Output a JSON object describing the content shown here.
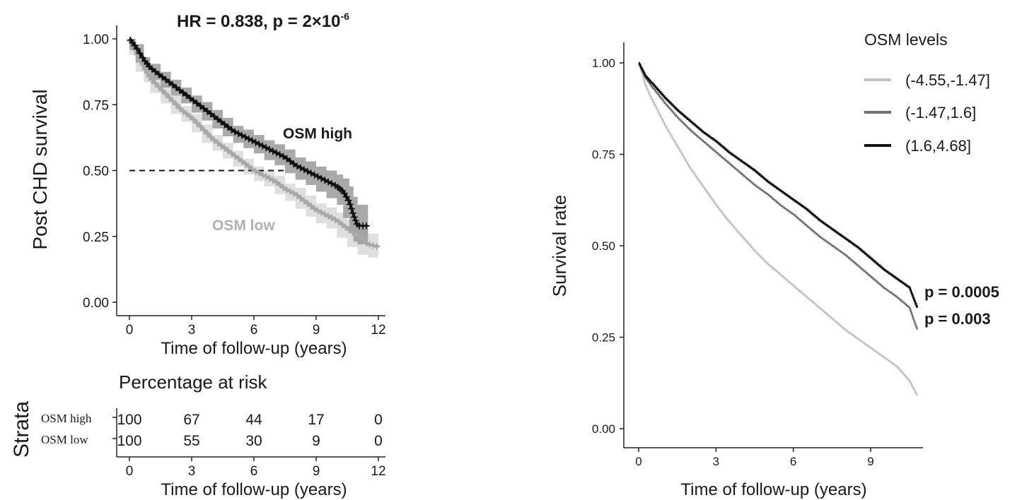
{
  "chart_data": [
    {
      "type": "line",
      "title": "HR = 0.838, p = 2×10",
      "title_sup": "-6",
      "xlabel": "Time of follow-up (years)",
      "ylabel": "Post CHD survival",
      "xlim": [
        0,
        12
      ],
      "ylim": [
        0,
        1
      ],
      "x_ticks": [
        "0",
        "3",
        "6",
        "9",
        "12"
      ],
      "y_ticks": [
        "0.00",
        "0.25",
        "0.50",
        "0.75",
        "1.00"
      ],
      "median_line": {
        "y": 0.5,
        "x_end": 7.6,
        "style": "dashed"
      },
      "series": [
        {
          "name": "OSM high",
          "color": "#111111",
          "band_color": "#9a9a9a",
          "x": [
            0,
            0.3,
            0.7,
            1,
            1.5,
            2,
            2.5,
            3,
            3.5,
            4,
            4.5,
            5,
            5.5,
            6,
            6.5,
            7,
            7.5,
            8,
            8.5,
            9,
            9.5,
            10,
            10.3,
            10.6,
            10.8,
            11,
            11.5
          ],
          "y": [
            1.0,
            0.97,
            0.92,
            0.89,
            0.86,
            0.83,
            0.8,
            0.77,
            0.74,
            0.71,
            0.68,
            0.65,
            0.63,
            0.61,
            0.59,
            0.57,
            0.55,
            0.52,
            0.5,
            0.48,
            0.46,
            0.44,
            0.42,
            0.38,
            0.33,
            0.29,
            0.29
          ],
          "lower": [
            1.0,
            0.96,
            0.91,
            0.875,
            0.845,
            0.815,
            0.785,
            0.755,
            0.72,
            0.69,
            0.66,
            0.63,
            0.605,
            0.585,
            0.565,
            0.54,
            0.52,
            0.49,
            0.465,
            0.445,
            0.42,
            0.395,
            0.37,
            0.32,
            0.27,
            0.23,
            0.22
          ],
          "upper": [
            1.0,
            0.98,
            0.93,
            0.905,
            0.875,
            0.845,
            0.815,
            0.785,
            0.76,
            0.73,
            0.7,
            0.67,
            0.655,
            0.635,
            0.615,
            0.6,
            0.58,
            0.55,
            0.535,
            0.515,
            0.5,
            0.485,
            0.47,
            0.44,
            0.4,
            0.37,
            0.37
          ]
        },
        {
          "name": "OSM low",
          "color": "#a8a8a8",
          "band_color": "#d4d4d4",
          "x": [
            0,
            0.3,
            0.7,
            1,
            1.5,
            2,
            2.5,
            3,
            3.5,
            4,
            4.5,
            5,
            5.5,
            6,
            6.5,
            7,
            7.5,
            8,
            8.5,
            9,
            9.5,
            10,
            10.5,
            11,
            11.5,
            12
          ],
          "y": [
            1.0,
            0.95,
            0.89,
            0.85,
            0.81,
            0.77,
            0.73,
            0.7,
            0.66,
            0.62,
            0.59,
            0.56,
            0.53,
            0.5,
            0.48,
            0.46,
            0.43,
            0.41,
            0.38,
            0.35,
            0.33,
            0.31,
            0.28,
            0.25,
            0.22,
            0.21
          ],
          "lower": [
            1.0,
            0.94,
            0.875,
            0.835,
            0.795,
            0.755,
            0.715,
            0.685,
            0.645,
            0.605,
            0.575,
            0.545,
            0.515,
            0.485,
            0.46,
            0.44,
            0.41,
            0.385,
            0.355,
            0.325,
            0.3,
            0.28,
            0.245,
            0.21,
            0.18,
            0.17
          ],
          "upper": [
            1.0,
            0.96,
            0.905,
            0.865,
            0.825,
            0.785,
            0.745,
            0.715,
            0.675,
            0.635,
            0.605,
            0.575,
            0.545,
            0.515,
            0.5,
            0.48,
            0.45,
            0.435,
            0.405,
            0.375,
            0.36,
            0.34,
            0.315,
            0.29,
            0.26,
            0.25
          ]
        }
      ],
      "annotations": [
        "OSM high",
        "OSM low"
      ]
    },
    {
      "type": "table",
      "title": "Percentage at risk",
      "ylabel": "Strata",
      "xlabel": "Time of follow-up (years)",
      "columns": [
        "0",
        "3",
        "6",
        "9",
        "12"
      ],
      "rows": [
        {
          "name": "OSM high",
          "values": [
            "100",
            "67",
            "44",
            "17",
            "0"
          ]
        },
        {
          "name": "OSM low",
          "values": [
            "100",
            "55",
            "30",
            "9",
            "0"
          ]
        }
      ]
    },
    {
      "type": "line",
      "title": "",
      "xlabel": "Time of follow-up  (years)",
      "ylabel": "Survival rate",
      "xlim": [
        -0.5,
        11.5
      ],
      "ylim": [
        -0.05,
        1.05
      ],
      "x_ticks": [
        "0",
        "3",
        "6",
        "9"
      ],
      "y_ticks": [
        "0.00",
        "0.25",
        "0.50",
        "0.75",
        "1.00"
      ],
      "legend_title": "OSM levels",
      "legend_position": "top-right",
      "series": [
        {
          "name": "(-4.55,-1.47]",
          "color": "#c2c2c2",
          "x": [
            0,
            0.25,
            0.5,
            1,
            1.5,
            2,
            2.5,
            3,
            3.5,
            4,
            4.5,
            5,
            5.5,
            6,
            6.5,
            7,
            7.5,
            8,
            8.5,
            9,
            9.5,
            10,
            10.5,
            10.8
          ],
          "y": [
            1.0,
            0.94,
            0.9,
            0.83,
            0.77,
            0.71,
            0.66,
            0.61,
            0.565,
            0.525,
            0.485,
            0.45,
            0.42,
            0.39,
            0.36,
            0.33,
            0.3,
            0.27,
            0.245,
            0.22,
            0.195,
            0.17,
            0.13,
            0.09
          ]
        },
        {
          "name": "(-1.47,1.6]",
          "color": "#707070",
          "x": [
            0,
            0.25,
            0.5,
            1,
            1.5,
            2,
            2.5,
            3,
            3.5,
            4,
            4.5,
            5,
            5.5,
            6,
            6.5,
            7,
            7.5,
            8,
            8.5,
            9,
            9.5,
            10,
            10.5,
            10.8
          ],
          "y": [
            1.0,
            0.96,
            0.935,
            0.89,
            0.85,
            0.815,
            0.785,
            0.755,
            0.725,
            0.695,
            0.665,
            0.64,
            0.61,
            0.585,
            0.555,
            0.525,
            0.5,
            0.475,
            0.445,
            0.415,
            0.385,
            0.36,
            0.33,
            0.27
          ]
        },
        {
          "name": "(1.6,4.68]",
          "color": "#141414",
          "x": [
            0,
            0.25,
            0.5,
            1,
            1.5,
            2,
            2.5,
            3,
            3.5,
            4,
            4.5,
            5,
            5.5,
            6,
            6.5,
            7,
            7.5,
            8,
            8.5,
            9,
            9.5,
            10,
            10.5,
            10.8
          ],
          "y": [
            1.0,
            0.965,
            0.945,
            0.905,
            0.87,
            0.84,
            0.81,
            0.785,
            0.755,
            0.73,
            0.705,
            0.675,
            0.65,
            0.625,
            0.6,
            0.57,
            0.545,
            0.52,
            0.495,
            0.465,
            0.435,
            0.41,
            0.385,
            0.33
          ]
        }
      ],
      "annotations": [
        "p = 0.0005",
        "p = 0.003"
      ]
    }
  ]
}
